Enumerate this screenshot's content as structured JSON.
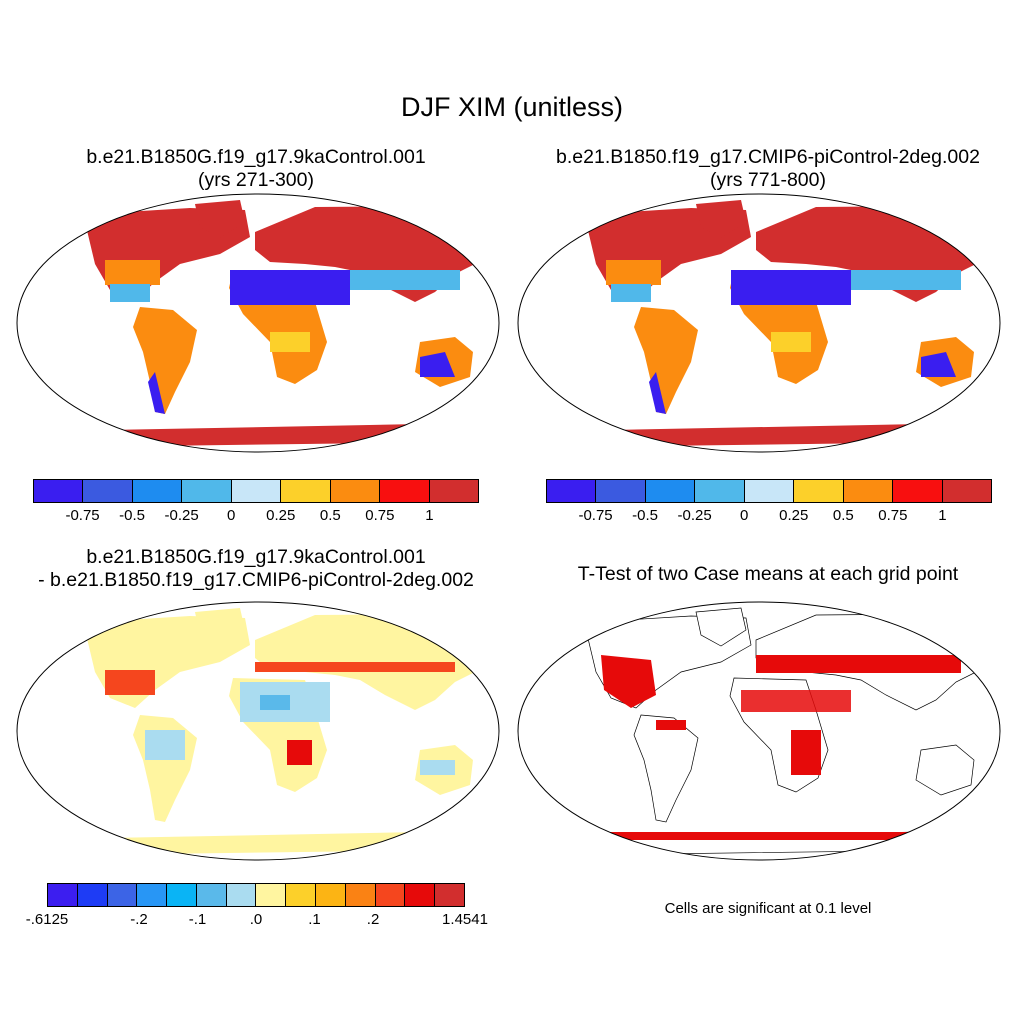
{
  "title": "DJF XIM (unitless)",
  "panels": {
    "p1": {
      "line1": "b.e21.B1850G.f19_g17.9kaControl.001",
      "line2": "(yrs 271-300)"
    },
    "p2": {
      "line1": "b.e21.B1850.f19_g17.CMIP6-piControl-2deg.002",
      "line2": "(yrs 771-800)"
    },
    "p3": {
      "line1": "b.e21.B1850G.f19_g17.9kaControl.001",
      "line2": "- b.e21.B1850.f19_g17.CMIP6-piControl-2deg.002"
    },
    "p4": {
      "line1": "T-Test of two Case means at each grid point"
    }
  },
  "colorbars": {
    "top": {
      "colors": [
        "#3a1ef0",
        "#3b5ae0",
        "#1e8cf0",
        "#50b8ea",
        "#c8e6f8",
        "#fcd02a",
        "#fb8c10",
        "#f80f0f",
        "#d22e2e"
      ],
      "labels": [
        "-0.75",
        "-0.5",
        "-0.25",
        "0",
        "0.25",
        "0.5",
        "0.75",
        "1"
      ]
    },
    "diff": {
      "colors": [
        "#3c1ef0",
        "#1e3cf5",
        "#3c64e6",
        "#2896f5",
        "#0ab4f5",
        "#5ab9ea",
        "#aadcf0",
        "#fff5a0",
        "#fcd02a",
        "#fcb414",
        "#fa8214",
        "#f5461e",
        "#e60a0a",
        "#d22e2e"
      ],
      "labels": [
        "-.6125",
        "-.2",
        "-.1",
        ".0",
        ".1",
        ".2",
        "1.4541"
      ]
    }
  },
  "note": "Cells are significant at 0.1 level",
  "colors": {
    "land_base": "#fff5a0",
    "signif": "#e60a0a"
  }
}
